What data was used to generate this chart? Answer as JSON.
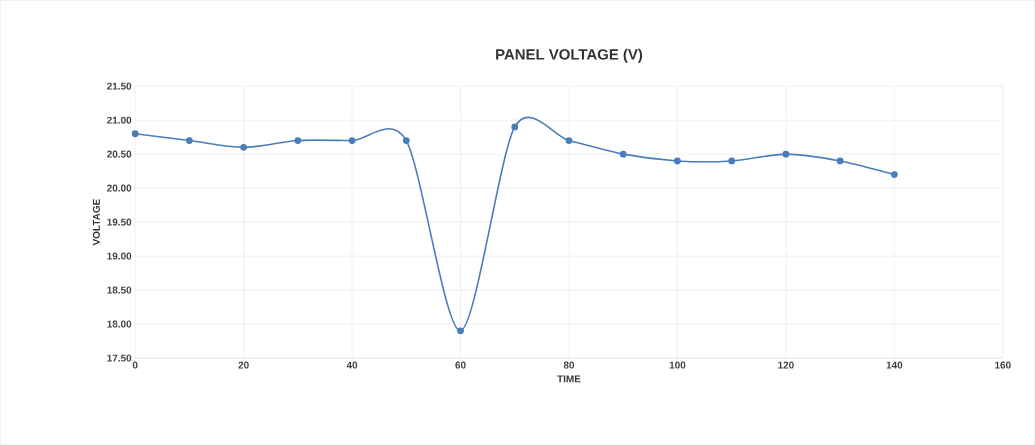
{
  "chart_data": {
    "type": "line",
    "title": "PANEL VOLTAGE (V)",
    "xlabel": "TIME",
    "ylabel": "VOLTAGE",
    "x": [
      0,
      10,
      20,
      30,
      40,
      50,
      60,
      70,
      80,
      90,
      100,
      110,
      120,
      130,
      140
    ],
    "series": [
      {
        "color": "#4a7ebb",
        "values": [
          20.8,
          20.7,
          20.6,
          20.7,
          20.7,
          20.7,
          17.9,
          20.9,
          20.7,
          20.5,
          20.4,
          20.4,
          20.5,
          20.4,
          20.2
        ]
      }
    ],
    "xlim": [
      0,
      160
    ],
    "xticks": [
      0,
      20,
      40,
      60,
      80,
      100,
      120,
      140,
      160
    ],
    "ylim": [
      17.5,
      21.5
    ],
    "yticks": [
      {
        "value": 17.5,
        "label": "17.50"
      },
      {
        "value": 18,
        "label": "18.00"
      },
      {
        "value": 18.5,
        "label": "18.50"
      },
      {
        "value": 19,
        "label": "19.00"
      },
      {
        "value": 19.5,
        "label": "19.50"
      },
      {
        "value": 20,
        "label": "20.00"
      },
      {
        "value": 20.5,
        "label": "20.50"
      },
      {
        "value": 21,
        "label": "21.00"
      },
      {
        "value": 21.5,
        "label": "21.50"
      }
    ],
    "grid": true,
    "marker": "circle",
    "line_style": "solid"
  }
}
